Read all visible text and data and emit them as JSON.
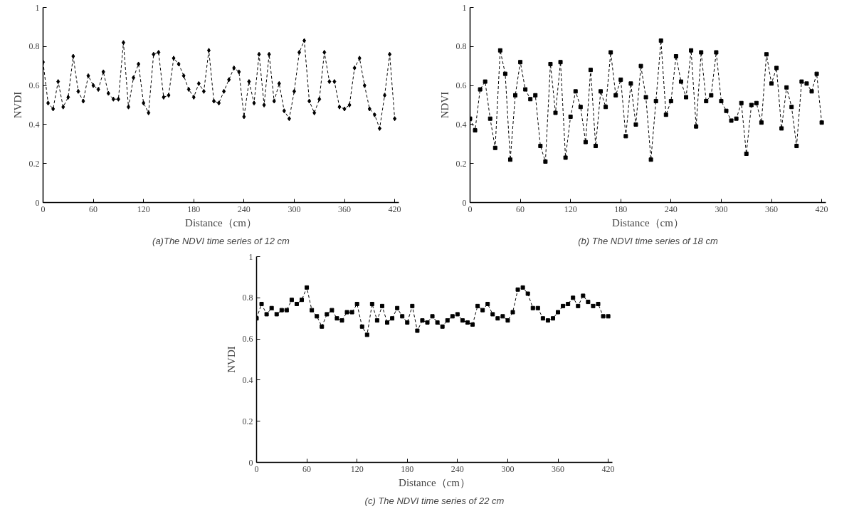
{
  "chart_data": [
    {
      "type": "line",
      "title": "(a)The NDVI time series of 12 cm",
      "xlabel": "Distance（cm）",
      "ylabel": "NVDI",
      "marker": "diamond",
      "line_style": "dashed",
      "grid": false,
      "x": [
        0,
        6,
        12,
        18,
        24,
        30,
        36,
        42,
        48,
        54,
        60,
        66,
        72,
        78,
        84,
        90,
        96,
        102,
        108,
        114,
        120,
        126,
        132,
        138,
        144,
        150,
        156,
        162,
        168,
        174,
        180,
        186,
        192,
        198,
        204,
        210,
        216,
        222,
        228,
        234,
        240,
        246,
        252,
        258,
        264,
        270,
        276,
        282,
        288,
        294,
        300,
        306,
        312,
        318,
        324,
        330,
        336,
        342,
        348,
        354,
        360,
        366,
        372,
        378,
        384,
        390,
        396,
        402,
        408,
        414,
        420
      ],
      "series": [
        {
          "color": "#000000",
          "values": [
            0.72,
            0.51,
            0.48,
            0.62,
            0.49,
            0.54,
            0.75,
            0.57,
            0.52,
            0.65,
            0.6,
            0.58,
            0.67,
            0.56,
            0.53,
            0.53,
            0.82,
            0.49,
            0.64,
            0.71,
            0.51,
            0.46,
            0.76,
            0.77,
            0.54,
            0.55,
            0.74,
            0.71,
            0.65,
            0.58,
            0.54,
            0.61,
            0.57,
            0.78,
            0.52,
            0.51,
            0.57,
            0.63,
            0.69,
            0.67,
            0.44,
            0.62,
            0.51,
            0.76,
            0.5,
            0.76,
            0.52,
            0.61,
            0.47,
            0.43,
            0.57,
            0.77,
            0.83,
            0.52,
            0.46,
            0.53,
            0.77,
            0.62,
            0.62,
            0.49,
            0.48,
            0.5,
            0.69,
            0.74,
            0.6,
            0.48,
            0.45,
            0.38,
            0.55,
            0.76,
            0.43
          ]
        }
      ],
      "xlim": [
        0,
        425
      ],
      "ylim": [
        0,
        1
      ],
      "xticks": [
        0,
        60,
        120,
        180,
        240,
        300,
        360,
        420
      ],
      "yticks": [
        0,
        0.2,
        0.4,
        0.6,
        0.8,
        1
      ]
    },
    {
      "type": "line",
      "title": "(b) The NDVI time series of 18 cm",
      "xlabel": "Distance（cm）",
      "ylabel": "NDVI",
      "marker": "square",
      "line_style": "dashed",
      "grid": false,
      "x": [
        0,
        6,
        12,
        18,
        24,
        30,
        36,
        42,
        48,
        54,
        60,
        66,
        72,
        78,
        84,
        90,
        96,
        102,
        108,
        114,
        120,
        126,
        132,
        138,
        144,
        150,
        156,
        162,
        168,
        174,
        180,
        186,
        192,
        198,
        204,
        210,
        216,
        222,
        228,
        234,
        240,
        246,
        252,
        258,
        264,
        270,
        276,
        282,
        288,
        294,
        300,
        306,
        312,
        318,
        324,
        330,
        336,
        342,
        348,
        354,
        360,
        366,
        372,
        378,
        384,
        390,
        396,
        402,
        408,
        414,
        420
      ],
      "series": [
        {
          "color": "#000000",
          "values": [
            0.43,
            0.37,
            0.58,
            0.62,
            0.43,
            0.28,
            0.78,
            0.66,
            0.22,
            0.55,
            0.72,
            0.58,
            0.53,
            0.55,
            0.29,
            0.21,
            0.71,
            0.46,
            0.72,
            0.23,
            0.44,
            0.57,
            0.49,
            0.31,
            0.68,
            0.29,
            0.57,
            0.49,
            0.77,
            0.55,
            0.63,
            0.34,
            0.61,
            0.4,
            0.7,
            0.54,
            0.22,
            0.52,
            0.83,
            0.45,
            0.52,
            0.75,
            0.62,
            0.54,
            0.78,
            0.39,
            0.77,
            0.52,
            0.55,
            0.77,
            0.52,
            0.47,
            0.42,
            0.43,
            0.51,
            0.25,
            0.5,
            0.51,
            0.41,
            0.76,
            0.61,
            0.69,
            0.38,
            0.59,
            0.49,
            0.29,
            0.62,
            0.61,
            0.57,
            0.66,
            0.41
          ]
        }
      ],
      "xlim": [
        0,
        425
      ],
      "ylim": [
        0,
        1
      ],
      "xticks": [
        0,
        60,
        120,
        180,
        240,
        300,
        360,
        420
      ],
      "yticks": [
        0,
        0.2,
        0.4,
        0.6,
        0.8,
        1
      ]
    },
    {
      "type": "line",
      "title": "(c) The NDVI time series of 22 cm",
      "xlabel": "Distance（cm）",
      "ylabel": "NVDI",
      "marker": "square",
      "line_style": "dashed",
      "grid": false,
      "x": [
        0,
        6,
        12,
        18,
        24,
        30,
        36,
        42,
        48,
        54,
        60,
        66,
        72,
        78,
        84,
        90,
        96,
        102,
        108,
        114,
        120,
        126,
        132,
        138,
        144,
        150,
        156,
        162,
        168,
        174,
        180,
        186,
        192,
        198,
        204,
        210,
        216,
        222,
        228,
        234,
        240,
        246,
        252,
        258,
        264,
        270,
        276,
        282,
        288,
        294,
        300,
        306,
        312,
        318,
        324,
        330,
        336,
        342,
        348,
        354,
        360,
        366,
        372,
        378,
        384,
        390,
        396,
        402,
        408,
        414,
        420
      ],
      "series": [
        {
          "color": "#000000",
          "values": [
            0.7,
            0.77,
            0.72,
            0.75,
            0.72,
            0.74,
            0.74,
            0.79,
            0.77,
            0.79,
            0.85,
            0.74,
            0.71,
            0.66,
            0.72,
            0.74,
            0.7,
            0.69,
            0.73,
            0.73,
            0.77,
            0.66,
            0.62,
            0.77,
            0.69,
            0.76,
            0.68,
            0.7,
            0.75,
            0.71,
            0.68,
            0.76,
            0.64,
            0.69,
            0.68,
            0.71,
            0.68,
            0.66,
            0.69,
            0.71,
            0.72,
            0.69,
            0.68,
            0.67,
            0.76,
            0.74,
            0.77,
            0.72,
            0.7,
            0.71,
            0.69,
            0.73,
            0.84,
            0.85,
            0.82,
            0.75,
            0.75,
            0.7,
            0.69,
            0.7,
            0.73,
            0.76,
            0.77,
            0.8,
            0.76,
            0.81,
            0.78,
            0.76,
            0.77,
            0.71,
            0.71
          ]
        }
      ],
      "xlim": [
        0,
        425
      ],
      "ylim": [
        0,
        1
      ],
      "xticks": [
        0,
        60,
        120,
        180,
        240,
        300,
        360,
        420
      ],
      "yticks": [
        0,
        0.2,
        0.4,
        0.6,
        0.8,
        1
      ]
    }
  ]
}
